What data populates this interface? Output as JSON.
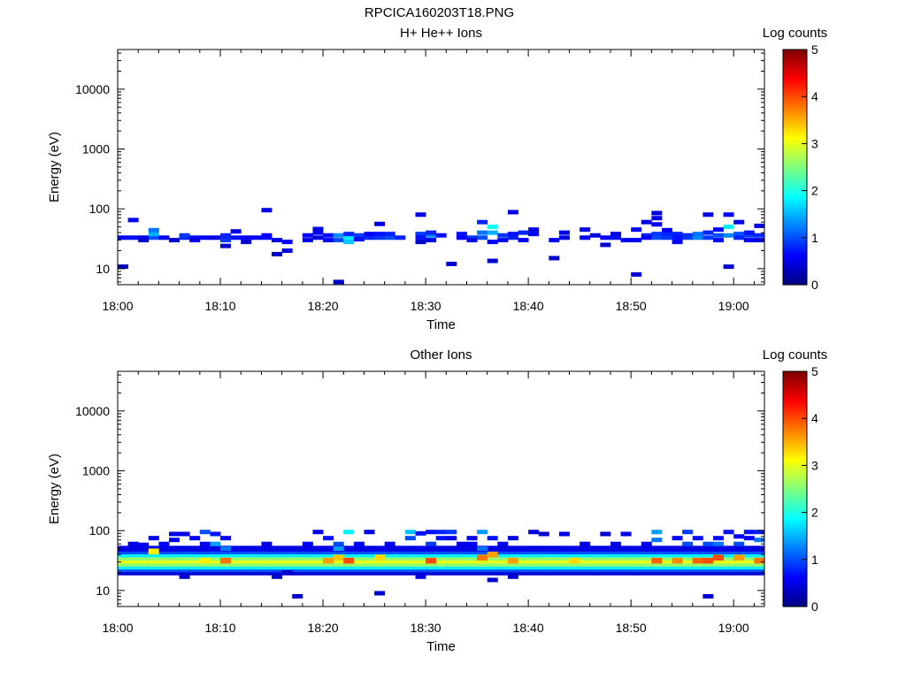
{
  "title": "RPCICA160203T18.PNG",
  "colormap": [
    "#00007f",
    "#0000ff",
    "#007fff",
    "#00ffff",
    "#7fff7f",
    "#ffff00",
    "#ff7f00",
    "#ff0000",
    "#7f0000"
  ],
  "chart_data": [
    {
      "type": "heatmap",
      "title": "H+ He++ Ions",
      "xlabel": "Time",
      "ylabel": "Energy (eV)",
      "xticks": [
        "18:00",
        "18:10",
        "18:20",
        "18:30",
        "18:40",
        "18:50",
        "19:00"
      ],
      "xlim": [
        "18:00",
        "19:03"
      ],
      "yticks": [
        10,
        100,
        1000,
        10000
      ],
      "ylim": [
        5.4,
        46000
      ],
      "yscale": "log",
      "colorbar": {
        "label": "Log counts",
        "range": [
          0,
          5
        ],
        "ticks": [
          0,
          1,
          2,
          3,
          4,
          5
        ]
      },
      "points": [
        [
          "18:00",
          10.8,
          0.3
        ],
        [
          "18:00",
          33,
          0.6
        ],
        [
          "18:01",
          33,
          0.7
        ],
        [
          "18:01",
          65,
          0.6
        ],
        [
          "18:02",
          33,
          0.5
        ],
        [
          "18:02",
          30,
          0.4
        ],
        [
          "18:03",
          33,
          1.0
        ],
        [
          "18:03",
          38,
          1.5
        ],
        [
          "18:03",
          44,
          1.2
        ],
        [
          "18:04",
          33,
          0.6
        ],
        [
          "18:05",
          30,
          0.4
        ],
        [
          "18:06",
          33,
          0.8
        ],
        [
          "18:06",
          36,
          0.9
        ],
        [
          "18:07",
          33,
          0.7
        ],
        [
          "18:07",
          30,
          0.5
        ],
        [
          "18:08",
          33,
          0.6
        ],
        [
          "18:09",
          33,
          0.5
        ],
        [
          "18:10",
          33,
          0.6
        ],
        [
          "18:10",
          36,
          0.8
        ],
        [
          "18:10",
          30,
          0.9
        ],
        [
          "18:10",
          24,
          0.4
        ],
        [
          "18:11",
          33,
          0.7
        ],
        [
          "18:11",
          42,
          0.5
        ],
        [
          "18:12",
          33,
          0.6
        ],
        [
          "18:12",
          28,
          0.4
        ],
        [
          "18:13",
          33,
          0.6
        ],
        [
          "18:14",
          95,
          0.5
        ],
        [
          "18:14",
          33,
          0.7
        ],
        [
          "18:14",
          36,
          0.6
        ],
        [
          "18:15",
          17.5,
          0.4
        ],
        [
          "18:15",
          30,
          0.5
        ],
        [
          "18:16",
          28,
          0.6
        ],
        [
          "18:16",
          20,
          0.5
        ],
        [
          "18:18",
          30,
          0.5
        ],
        [
          "18:18",
          36,
          0.6
        ],
        [
          "18:19",
          40,
          0.6
        ],
        [
          "18:19",
          46,
          0.5
        ],
        [
          "18:19",
          33,
          0.5
        ],
        [
          "18:20",
          30,
          0.6
        ],
        [
          "18:20",
          36,
          0.7
        ],
        [
          "18:21",
          6,
          0.4
        ],
        [
          "18:21",
          30,
          1.0
        ],
        [
          "18:21",
          36,
          1.3
        ],
        [
          "18:22",
          33,
          1.8
        ],
        [
          "18:22",
          28,
          1.6
        ],
        [
          "18:22",
          38,
          0.8
        ],
        [
          "18:23",
          36,
          0.9
        ],
        [
          "18:23",
          31,
          0.7
        ],
        [
          "18:24",
          33,
          0.8
        ],
        [
          "18:24",
          38,
          0.6
        ],
        [
          "18:25",
          33,
          0.9
        ],
        [
          "18:25",
          56,
          0.5
        ],
        [
          "18:25",
          38,
          0.7
        ],
        [
          "18:26",
          33,
          1.0
        ],
        [
          "18:26",
          38,
          0.8
        ],
        [
          "18:27",
          33,
          0.8
        ],
        [
          "18:29",
          80,
          0.5
        ],
        [
          "18:29",
          38,
          0.9
        ],
        [
          "18:29",
          33,
          0.7
        ],
        [
          "18:29",
          28,
          0.4
        ],
        [
          "18:30",
          36,
          1.3
        ],
        [
          "18:30",
          40,
          0.8
        ],
        [
          "18:30",
          30,
          0.5
        ],
        [
          "18:31",
          36,
          0.7
        ],
        [
          "18:32",
          12,
          0.4
        ],
        [
          "18:33",
          33,
          0.6
        ],
        [
          "18:33",
          38,
          0.7
        ],
        [
          "18:34",
          33,
          0.9
        ],
        [
          "18:34",
          30,
          0.5
        ],
        [
          "18:35",
          60,
          0.8
        ],
        [
          "18:35",
          33,
          1.0
        ],
        [
          "18:35",
          40,
          1.2
        ],
        [
          "18:36",
          50,
          1.9
        ],
        [
          "18:36",
          40,
          1.5
        ],
        [
          "18:36",
          13.5,
          0.4
        ],
        [
          "18:36",
          28,
          0.6
        ],
        [
          "18:37",
          36,
          0.9
        ],
        [
          "18:37",
          30,
          0.6
        ],
        [
          "18:38",
          33,
          0.8
        ],
        [
          "18:38",
          88,
          0.5
        ],
        [
          "18:38",
          38,
          0.7
        ],
        [
          "18:39",
          40,
          0.8
        ],
        [
          "18:39",
          30,
          0.6
        ],
        [
          "18:40",
          38,
          0.6
        ],
        [
          "18:40",
          45,
          0.5
        ],
        [
          "18:42",
          30,
          0.6
        ],
        [
          "18:42",
          15,
          0.4
        ],
        [
          "18:43",
          33,
          0.5
        ],
        [
          "18:43",
          40,
          0.5
        ],
        [
          "18:45",
          33,
          0.6
        ],
        [
          "18:45",
          45,
          0.5
        ],
        [
          "18:46",
          36,
          0.5
        ],
        [
          "18:47",
          33,
          0.6
        ],
        [
          "18:47",
          25,
          0.4
        ],
        [
          "18:48",
          33,
          0.7
        ],
        [
          "18:48",
          38,
          0.5
        ],
        [
          "18:49",
          30,
          0.6
        ],
        [
          "18:50",
          8,
          0.4
        ],
        [
          "18:50",
          30,
          0.6
        ],
        [
          "18:50",
          45,
          0.6
        ],
        [
          "18:51",
          36,
          0.8
        ],
        [
          "18:51",
          60,
          0.5
        ],
        [
          "18:51",
          33,
          0.6
        ],
        [
          "18:52",
          33,
          1.0
        ],
        [
          "18:52",
          38,
          0.9
        ],
        [
          "18:52",
          55,
          0.6
        ],
        [
          "18:52",
          70,
          0.5
        ],
        [
          "18:52",
          85,
          0.5
        ],
        [
          "18:53",
          33,
          0.9
        ],
        [
          "18:53",
          38,
          0.8
        ],
        [
          "18:53",
          44,
          0.6
        ],
        [
          "18:54",
          38,
          0.8
        ],
        [
          "18:54",
          33,
          0.7
        ],
        [
          "18:54",
          28,
          0.6
        ],
        [
          "18:55",
          36,
          0.8
        ],
        [
          "18:55",
          33,
          0.9
        ],
        [
          "18:56",
          33,
          1.3
        ],
        [
          "18:56",
          38,
          1.2
        ],
        [
          "18:57",
          80,
          0.5
        ],
        [
          "18:57",
          33,
          0.9
        ],
        [
          "18:57",
          40,
          0.8
        ],
        [
          "18:58",
          36,
          1.0
        ],
        [
          "18:58",
          30,
          0.6
        ],
        [
          "18:58",
          45,
          0.6
        ],
        [
          "18:59",
          80,
          0.6
        ],
        [
          "18:59",
          50,
          1.8
        ],
        [
          "18:59",
          36,
          1.3
        ],
        [
          "18:59",
          10.8,
          0.4
        ],
        [
          "19:00",
          60,
          0.5
        ],
        [
          "19:00",
          38,
          1.0
        ],
        [
          "19:00",
          33,
          0.8
        ],
        [
          "19:01",
          36,
          0.9
        ],
        [
          "19:01",
          40,
          0.7
        ],
        [
          "19:01",
          30,
          0.6
        ],
        [
          "19:02",
          36,
          0.8
        ],
        [
          "19:02",
          30,
          0.5
        ],
        [
          "19:02",
          52,
          0.5
        ]
      ]
    },
    {
      "type": "heatmap",
      "title": "Other Ions",
      "xlabel": "Time",
      "ylabel": "Energy (eV)",
      "xticks": [
        "18:00",
        "18:10",
        "18:20",
        "18:30",
        "18:40",
        "18:50",
        "19:00"
      ],
      "xlim": [
        "18:00",
        "19:03"
      ],
      "yticks": [
        10,
        100,
        1000,
        10000
      ],
      "ylim": [
        5.4,
        46000
      ],
      "yscale": "log",
      "colorbar": {
        "label": "Log counts",
        "range": [
          0,
          5
        ],
        "ticks": [
          0,
          1,
          2,
          3,
          4,
          5
        ]
      },
      "band_profile": {
        "energies": [
          20,
          22.5,
          25,
          28,
          31.5,
          35.5,
          40,
          45,
          50
        ],
        "levels": [
          0.4,
          1.0,
          1.8,
          2.6,
          3.0,
          2.6,
          1.8,
          1.0,
          0.5
        ]
      },
      "band_peaks": [
        [
          "18:03",
          45,
          3.2
        ],
        [
          "18:08",
          31.5,
          3.2
        ],
        [
          "18:10",
          31.5,
          3.8
        ],
        [
          "18:20",
          31.5,
          3.6
        ],
        [
          "18:21",
          35.5,
          3.4
        ],
        [
          "18:22",
          31.5,
          4.0
        ],
        [
          "18:25",
          35.5,
          3.3
        ],
        [
          "18:30",
          31.5,
          4.0
        ],
        [
          "18:35",
          35.5,
          3.8
        ],
        [
          "18:36",
          40,
          3.6
        ],
        [
          "18:38",
          31.5,
          3.6
        ],
        [
          "18:44",
          31.5,
          3.3
        ],
        [
          "18:52",
          31.5,
          3.9
        ],
        [
          "18:54",
          31.5,
          3.7
        ],
        [
          "18:56",
          31.5,
          3.9
        ],
        [
          "18:57",
          31.5,
          4.0
        ],
        [
          "18:58",
          35.5,
          4.0
        ],
        [
          "19:00",
          35.5,
          3.6
        ],
        [
          "19:02",
          31.5,
          3.8
        ]
      ],
      "points": [
        [
          "18:01",
          60,
          0.5
        ],
        [
          "18:02",
          58,
          0.6
        ],
        [
          "18:03",
          75,
          0.5
        ],
        [
          "18:04",
          60,
          0.6
        ],
        [
          "18:05",
          88,
          0.5
        ],
        [
          "18:05",
          70,
          0.5
        ],
        [
          "18:06",
          88,
          0.5
        ],
        [
          "18:06",
          17,
          0.4
        ],
        [
          "18:07",
          75,
          0.6
        ],
        [
          "18:08",
          60,
          0.6
        ],
        [
          "18:08",
          95,
          1.0
        ],
        [
          "18:09",
          60,
          1.4
        ],
        [
          "18:09",
          88,
          0.7
        ],
        [
          "18:10",
          75,
          0.6
        ],
        [
          "18:10",
          50,
          1.2
        ],
        [
          "18:14",
          60,
          0.5
        ],
        [
          "18:15",
          17,
          0.4
        ],
        [
          "18:16",
          20,
          0.4
        ],
        [
          "18:17",
          8,
          0.4
        ],
        [
          "18:18",
          60,
          0.6
        ],
        [
          "18:19",
          95,
          0.5
        ],
        [
          "18:20",
          75,
          0.7
        ],
        [
          "18:21",
          60,
          1.0
        ],
        [
          "18:21",
          50,
          1.4
        ],
        [
          "18:22",
          95,
          1.8
        ],
        [
          "18:23",
          60,
          0.6
        ],
        [
          "18:24",
          95,
          0.5
        ],
        [
          "18:25",
          9,
          0.4
        ],
        [
          "18:26",
          60,
          0.6
        ],
        [
          "18:28",
          75,
          1.0
        ],
        [
          "18:28",
          95,
          1.6
        ],
        [
          "18:29",
          90,
          0.7
        ],
        [
          "18:29",
          17,
          0.5
        ],
        [
          "18:30",
          95,
          0.7
        ],
        [
          "18:30",
          60,
          0.9
        ],
        [
          "18:31",
          95,
          0.8
        ],
        [
          "18:31",
          75,
          0.7
        ],
        [
          "18:32",
          95,
          0.9
        ],
        [
          "18:32",
          75,
          0.5
        ],
        [
          "18:33",
          60,
          0.5
        ],
        [
          "18:34",
          75,
          0.5
        ],
        [
          "18:34",
          60,
          0.6
        ],
        [
          "18:35",
          95,
          1.4
        ],
        [
          "18:35",
          50,
          1.2
        ],
        [
          "18:36",
          75,
          0.7
        ],
        [
          "18:36",
          15,
          0.4
        ],
        [
          "18:37",
          60,
          0.6
        ],
        [
          "18:38",
          75,
          0.5
        ],
        [
          "18:38",
          17,
          0.4
        ],
        [
          "18:40",
          95,
          0.5
        ],
        [
          "18:41",
          88,
          0.4
        ],
        [
          "18:43",
          88,
          0.5
        ],
        [
          "18:45",
          60,
          0.5
        ],
        [
          "18:47",
          88,
          0.4
        ],
        [
          "18:48",
          60,
          0.5
        ],
        [
          "18:49",
          88,
          0.5
        ],
        [
          "18:51",
          60,
          0.6
        ],
        [
          "18:52",
          95,
          1.4
        ],
        [
          "18:52",
          70,
          1.2
        ],
        [
          "18:54",
          75,
          0.6
        ],
        [
          "18:55",
          95,
          0.9
        ],
        [
          "18:55",
          60,
          1.0
        ],
        [
          "18:56",
          75,
          0.7
        ],
        [
          "18:57",
          60,
          1.0
        ],
        [
          "18:57",
          8,
          0.4
        ],
        [
          "18:58",
          75,
          0.7
        ],
        [
          "18:58",
          60,
          1.2
        ],
        [
          "18:59",
          95,
          0.7
        ],
        [
          "19:00",
          80,
          0.6
        ],
        [
          "19:00",
          60,
          1.0
        ],
        [
          "19:01",
          95,
          0.7
        ],
        [
          "19:01",
          75,
          0.6
        ],
        [
          "19:02",
          95,
          0.8
        ],
        [
          "19:02",
          70,
          1.2
        ]
      ]
    }
  ]
}
